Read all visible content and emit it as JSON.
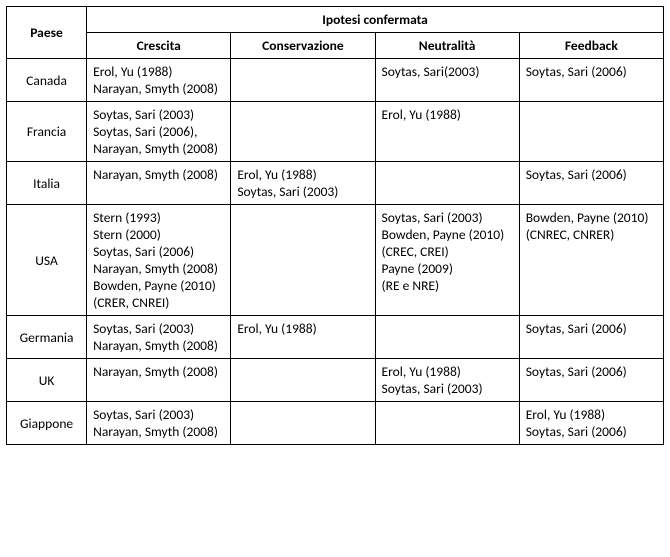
{
  "type": "table",
  "font_family": "Calibri",
  "font_size_pt": 11,
  "border_color": "#000000",
  "background_color": "#ffffff",
  "text_color": "#000000",
  "header": {
    "paese": "Paese",
    "ipotesi": "Ipotesi confermata",
    "cols": [
      "Crescita",
      "Conservazione",
      "Neutralità",
      "Feedback"
    ]
  },
  "rows": [
    {
      "paese": "Canada",
      "crescita": [
        "Erol, Yu (1988)",
        "Narayan, Smyth (2008)"
      ],
      "conservazione": [],
      "neutralita": [
        "Soytas, Sari(2003)"
      ],
      "feedback": [
        "Soytas, Sari (2006)"
      ]
    },
    {
      "paese": "Francia",
      "crescita": [
        "Soytas, Sari (2003)",
        "Soytas, Sari (2006),",
        "Narayan, Smyth (2008)"
      ],
      "conservazione": [],
      "neutralita": [
        "Erol, Yu (1988)"
      ],
      "feedback": []
    },
    {
      "paese": "Italia",
      "crescita": [
        "Narayan, Smyth (2008)"
      ],
      "conservazione": [
        "Erol, Yu (1988)",
        "Soytas, Sari (2003)"
      ],
      "neutralita": [],
      "feedback": [
        "Soytas, Sari (2006)"
      ]
    },
    {
      "paese": "USA",
      "crescita": [
        "Stern (1993)",
        "Stern (2000)",
        "Soytas, Sari (2006)",
        "Narayan, Smyth (2008)",
        "Bowden, Payne (2010)",
        "(CRER, CNREI)"
      ],
      "conservazione": [],
      "neutralita": [
        "Soytas, Sari (2003)",
        "Bowden, Payne (2010)",
        "(CREC, CREI)",
        "Payne (2009)",
        "(RE e NRE)"
      ],
      "feedback": [
        "Bowden, Payne (2010)",
        "(CNREC, CNRER)"
      ]
    },
    {
      "paese": "Germania",
      "crescita": [
        "Soytas, Sari (2003)",
        "Narayan, Smyth (2008)"
      ],
      "conservazione": [
        "Erol, Yu (1988)"
      ],
      "neutralita": [],
      "feedback": [
        "Soytas, Sari (2006)"
      ]
    },
    {
      "paese": "UK",
      "crescita": [
        "Narayan, Smyth (2008)"
      ],
      "conservazione": [],
      "neutralita": [
        "Erol, Yu (1988)",
        "Soytas, Sari (2003)"
      ],
      "feedback": [
        "Soytas, Sari (2006)"
      ]
    },
    {
      "paese": "Giappone",
      "crescita": [
        "Soytas, Sari (2003)",
        "Narayan, Smyth (2008)"
      ],
      "conservazione": [],
      "neutralita": [],
      "feedback": [
        "Erol, Yu (1988)",
        "Soytas, Sari (2006)"
      ]
    }
  ]
}
